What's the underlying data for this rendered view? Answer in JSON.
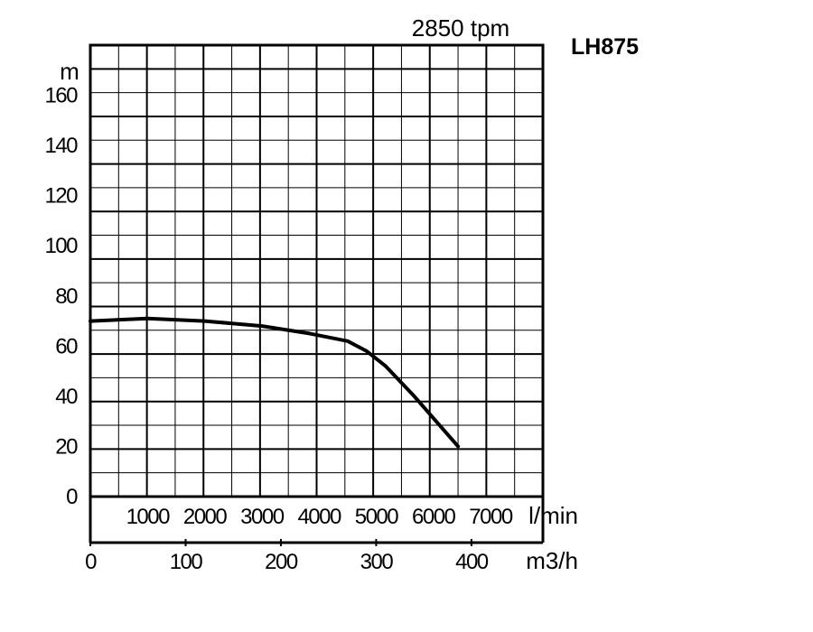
{
  "chart_data": {
    "type": "line",
    "title": "LH875",
    "subtitle": "2850 tpm",
    "ylabel": "m",
    "xlabel_lmin": "l/min",
    "xlabel_m3h": "m3/h",
    "ylim": [
      0,
      180
    ],
    "xlim_m3h": [
      0,
      475
    ],
    "grid": true,
    "y_ticks": [
      "0",
      "20",
      "40",
      "60",
      "80",
      "100",
      "120",
      "140",
      "160"
    ],
    "x_ticks_lmin": [
      "1000",
      "2000",
      "3000",
      "4000",
      "5000",
      "6000",
      "7000"
    ],
    "x_ticks_m3h": [
      "0",
      "100",
      "200",
      "300",
      "400"
    ],
    "colors": {
      "curve": "#000000",
      "grid": "#000000"
    },
    "series": [
      {
        "x": [
          0,
          60,
          120,
          180,
          230,
          270,
          290,
          310,
          340,
          386
        ],
        "y": [
          70,
          71,
          70,
          68,
          65,
          62,
          58,
          52,
          40,
          20
        ]
      }
    ]
  }
}
